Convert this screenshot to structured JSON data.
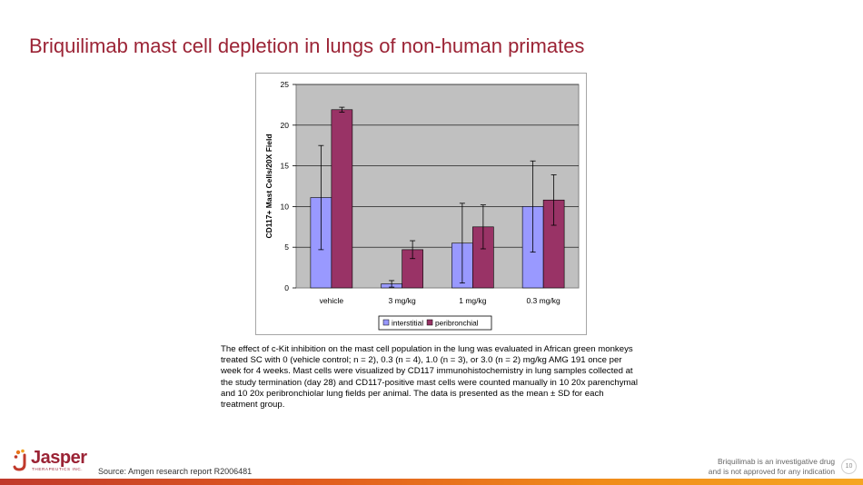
{
  "slide": {
    "title": "Briquilimab mast cell depletion in lungs of non-human primates",
    "caption": "The effect of c-Kit inhibition on the mast cell population in the lung was evaluated in African green monkeys treated SC with 0 (vehicle control; n = 2), 0.3 (n = 4), 1.0 (n = 3), or 3.0 (n = 2) mg/kg AMG 191 once per week for 4 weeks.  Mast cells were visualized by CD117 immunohistochemistry in lung samples collected at the study termination (day 28) and CD117-positive mast cells were counted manually in 10 20x parenchymal and 10 20x peribronchiolar lung fields per animal.  The data is presented as the mean ± SD for each treatment group.",
    "source": "Source: Amgen research report R2006481",
    "disclaimer_line1": "Briquilimab is an investigative drug",
    "disclaimer_line2": "and is not approved for any indication",
    "page_number": "10",
    "logo_name": "Jasper",
    "logo_sub": "THERAPEUTICS INC.",
    "brand_color": "#9b2335"
  },
  "chart_data": {
    "type": "bar",
    "title": "",
    "xlabel": "",
    "ylabel": "CD117+ Mast Cells/20X Field",
    "categories": [
      "vehicle",
      "3 mg/kg",
      "1 mg/kg",
      "0.3 mg/kg"
    ],
    "ylim": [
      0,
      25
    ],
    "yticks": [
      0,
      5,
      10,
      15,
      20,
      25
    ],
    "grid": true,
    "legend_position": "bottom",
    "plot_background": "#c0c0c0",
    "series": [
      {
        "name": "interstitial",
        "color": "#9999ff",
        "values": [
          11.1,
          0.5,
          5.5,
          10.0
        ],
        "error": [
          6.4,
          0.4,
          4.9,
          5.6
        ]
      },
      {
        "name": "peribronchial",
        "color": "#993366",
        "values": [
          21.9,
          4.7,
          7.5,
          10.8
        ],
        "error": [
          0.3,
          1.1,
          2.7,
          3.1
        ]
      }
    ]
  }
}
